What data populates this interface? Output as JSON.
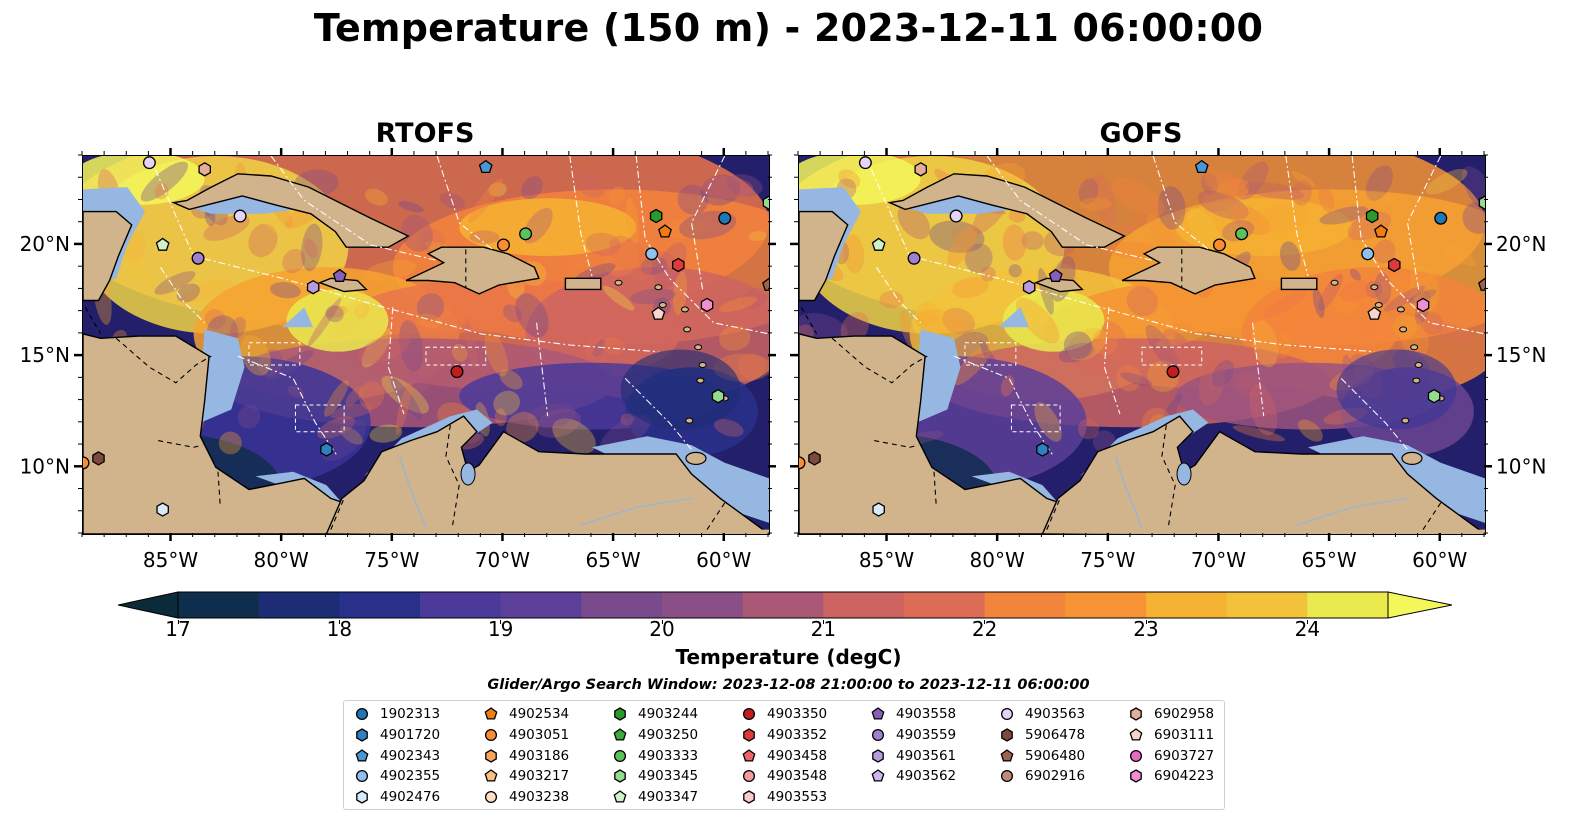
{
  "title": "Temperature (150 m) - 2023-12-11 06:00:00",
  "panels": [
    {
      "title": "RTOFS"
    },
    {
      "title": "GOFS"
    }
  ],
  "x_ticks": [
    "85°W",
    "80°W",
    "75°W",
    "70°W",
    "65°W",
    "60°W"
  ],
  "y_ticks": [
    "20°N",
    "15°N",
    "10°N"
  ],
  "colorbar": {
    "label": "Temperature (degC)",
    "ticks": [
      "17",
      "18",
      "19",
      "20",
      "21",
      "22",
      "23",
      "24"
    ],
    "vmin": 16.75,
    "vmax": 24.5,
    "extend": "both",
    "colors": [
      "#0b2a3a",
      "#0f2d4d",
      "#14305e",
      "#1c2d75",
      "#29308a",
      "#3a3596",
      "#4b3a9a",
      "#5c3f98",
      "#6b4592",
      "#7a4b8c",
      "#8a4f86",
      "#9a537f",
      "#ab5877",
      "#bc5d6d",
      "#cd6462",
      "#dd6c56",
      "#ea7649",
      "#f3843c",
      "#f69334",
      "#f7a231",
      "#f6b233",
      "#f3c23b",
      "#f0d445",
      "#eaea4f",
      "#f4f75a"
    ]
  },
  "legend": {
    "title": "Glider/Argo Search Window: 2023-12-08 21:00:00 to 2023-12-11 06:00:00",
    "columns": [
      [
        {
          "id": "1902313",
          "marker": "circle",
          "color": "#1f77b4"
        },
        {
          "id": "4901720",
          "marker": "hexagon",
          "color": "#2f7fc1"
        },
        {
          "id": "4902343",
          "marker": "pentagon",
          "color": "#4a95d4"
        },
        {
          "id": "4902355",
          "marker": "circle",
          "color": "#8ec1ee"
        },
        {
          "id": "4902476",
          "marker": "hexagon",
          "color": "#d6eaf8"
        }
      ],
      [
        {
          "id": "4902534",
          "marker": "pentagon",
          "color": "#f07c12"
        },
        {
          "id": "4903051",
          "marker": "circle",
          "color": "#f88d35"
        },
        {
          "id": "4903186",
          "marker": "hexagon",
          "color": "#f9a55e"
        },
        {
          "id": "4903217",
          "marker": "pentagon",
          "color": "#fbc085"
        },
        {
          "id": "4903238",
          "marker": "circle",
          "color": "#fde0c0"
        }
      ],
      [
        {
          "id": "4903244",
          "marker": "hexagon",
          "color": "#2a9a2a"
        },
        {
          "id": "4903250",
          "marker": "pentagon",
          "color": "#3aab3a"
        },
        {
          "id": "4903333",
          "marker": "circle",
          "color": "#5bc25b"
        },
        {
          "id": "4903345",
          "marker": "hexagon",
          "color": "#93dc8c"
        },
        {
          "id": "4903347",
          "marker": "pentagon",
          "color": "#cff3c8"
        }
      ],
      [
        {
          "id": "4903350",
          "marker": "circle",
          "color": "#c21e1e"
        },
        {
          "id": "4903352",
          "marker": "hexagon",
          "color": "#de3a3a"
        },
        {
          "id": "4903458",
          "marker": "pentagon",
          "color": "#ee6464"
        },
        {
          "id": "4903548",
          "marker": "circle",
          "color": "#f59a9a"
        },
        {
          "id": "4903553",
          "marker": "hexagon",
          "color": "#fbcaca"
        }
      ],
      [
        {
          "id": "4903558",
          "marker": "pentagon",
          "color": "#8660b8"
        },
        {
          "id": "4903559",
          "marker": "circle",
          "color": "#a07fd0"
        },
        {
          "id": "4903561",
          "marker": "hexagon",
          "color": "#b89ae0"
        },
        {
          "id": "4903562",
          "marker": "pentagon",
          "color": "#cdb6ee"
        }
      ],
      [
        {
          "id": "4903563",
          "marker": "circle",
          "color": "#e6d2f7"
        },
        {
          "id": "5906478",
          "marker": "hexagon",
          "color": "#7d4a3d"
        },
        {
          "id": "5906480",
          "marker": "pentagon",
          "color": "#9b6352"
        },
        {
          "id": "6902916",
          "marker": "circle",
          "color": "#c08a78"
        }
      ],
      [
        {
          "id": "6902958",
          "marker": "hexagon",
          "color": "#e3ae9c"
        },
        {
          "id": "6903111",
          "marker": "pentagon",
          "color": "#f6d6cb"
        },
        {
          "id": "6903727",
          "marker": "circle",
          "color": "#e36bc0"
        },
        {
          "id": "6904223",
          "marker": "hexagon",
          "color": "#ef8fd2"
        }
      ]
    ]
  },
  "floats": [
    {
      "id": "4903563",
      "lon": -86.0,
      "lat": 23.7
    },
    {
      "id": "6902958",
      "lon": -83.5,
      "lat": 23.4
    },
    {
      "id": "4902343",
      "lon": -70.8,
      "lat": 23.5
    },
    {
      "id": "4903563",
      "lon": -81.9,
      "lat": 21.3
    },
    {
      "id": "4903347",
      "lon": -85.4,
      "lat": 20.0
    },
    {
      "id": "4903559",
      "lon": -83.8,
      "lat": 19.4
    },
    {
      "id": "4903561",
      "lon": -78.6,
      "lat": 18.1
    },
    {
      "id": "4903558",
      "lon": -77.4,
      "lat": 18.6
    },
    {
      "id": "4903051",
      "lon": -70.0,
      "lat": 20.0
    },
    {
      "id": "4903333",
      "lon": -69.0,
      "lat": 20.5
    },
    {
      "id": "4903244",
      "lon": -63.1,
      "lat": 21.3
    },
    {
      "id": "4902534",
      "lon": -62.7,
      "lat": 20.6
    },
    {
      "id": "1902313",
      "lon": -60.0,
      "lat": 21.2
    },
    {
      "id": "4903345",
      "lon": -58.0,
      "lat": 21.9
    },
    {
      "id": "4902355",
      "lon": -63.3,
      "lat": 19.6
    },
    {
      "id": "4903352",
      "lon": -62.1,
      "lat": 19.1
    },
    {
      "id": "6904223",
      "lon": -60.8,
      "lat": 17.3
    },
    {
      "id": "6903111",
      "lon": -63.0,
      "lat": 16.9
    },
    {
      "id": "5906480",
      "lon": -58.0,
      "lat": 18.2
    },
    {
      "id": "4903350",
      "lon": -72.1,
      "lat": 14.3
    },
    {
      "id": "4903345",
      "lon": -60.3,
      "lat": 13.2
    },
    {
      "id": "4901720",
      "lon": -78.0,
      "lat": 10.8
    },
    {
      "id": "4903051",
      "lon": -89.0,
      "lat": 10.2
    },
    {
      "id": "5906478",
      "lon": -88.3,
      "lat": 10.4
    },
    {
      "id": "4902476",
      "lon": -85.4,
      "lat": 8.1
    }
  ]
}
